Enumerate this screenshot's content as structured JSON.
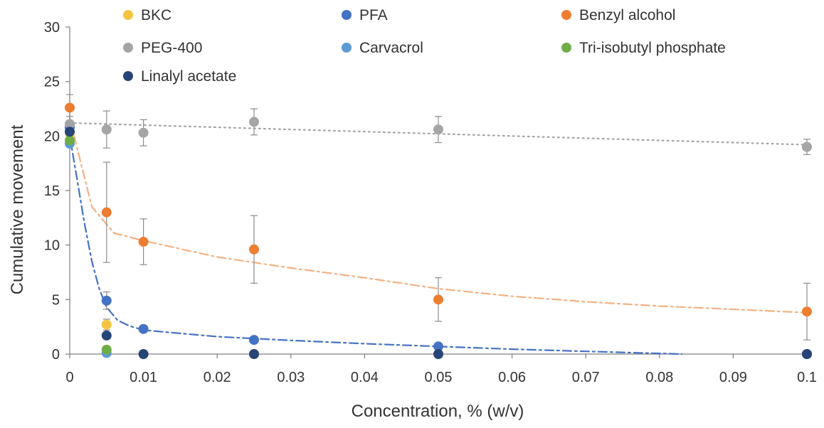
{
  "chart_data": {
    "type": "scatter",
    "title": "",
    "xlabel": "Concentration, % (w/v)",
    "ylabel": "Cumulative movement",
    "xlim": [
      0,
      0.1
    ],
    "ylim": [
      0,
      30
    ],
    "xticks": [
      "0",
      "0.01",
      "0.02",
      "0.03",
      "0.04",
      "0.05",
      "0.06",
      "0.07",
      "0.08",
      "0.09",
      "0.1"
    ],
    "yticks": [
      "0",
      "5",
      "10",
      "15",
      "20",
      "25",
      "30"
    ],
    "xtick_values": [
      0,
      0.01,
      0.02,
      0.03,
      0.04,
      0.05,
      0.06,
      0.07,
      0.08,
      0.09,
      0.1
    ],
    "ytick_values": [
      0,
      5,
      10,
      15,
      20,
      25,
      30
    ],
    "grid": false,
    "legend_position": "top",
    "series": [
      {
        "name": "BKC",
        "color": "#F4C542",
        "points": [
          {
            "x": 0,
            "y": 20.3,
            "err": 0.5
          },
          {
            "x": 0.005,
            "y": 2.7,
            "err": 0.5
          },
          {
            "x": 0.01,
            "y": 0
          },
          {
            "x": 0.025,
            "y": 0
          },
          {
            "x": 0.05,
            "y": 0
          },
          {
            "x": 0.1,
            "y": 0
          }
        ]
      },
      {
        "name": "PFA",
        "color": "#4472C4",
        "points": [
          {
            "x": 0,
            "y": 20.8,
            "err": 1.0
          },
          {
            "x": 0.005,
            "y": 4.9,
            "err": 0.8
          },
          {
            "x": 0.01,
            "y": 2.3,
            "err": 0.3
          },
          {
            "x": 0.025,
            "y": 1.3,
            "err": 0.3
          },
          {
            "x": 0.05,
            "y": 0.7,
            "err": 0.2
          },
          {
            "x": 0.1,
            "y": 0
          }
        ]
      },
      {
        "name": "Benzyl alcohol",
        "color": "#ED7D31",
        "points": [
          {
            "x": 0,
            "y": 22.6,
            "err": 1.2
          },
          {
            "x": 0.005,
            "y": 13.0,
            "err": 4.6
          },
          {
            "x": 0.01,
            "y": 10.3,
            "err": 2.1
          },
          {
            "x": 0.025,
            "y": 9.6,
            "err": 3.1
          },
          {
            "x": 0.05,
            "y": 5.0,
            "err": 2.0
          },
          {
            "x": 0.1,
            "y": 3.9,
            "err": 2.6
          }
        ]
      },
      {
        "name": "PEG-400",
        "color": "#A5A5A5",
        "points": [
          {
            "x": 0,
            "y": 21.1,
            "err": 1.4
          },
          {
            "x": 0.005,
            "y": 20.6,
            "err": 1.7
          },
          {
            "x": 0.01,
            "y": 20.3,
            "err": 1.2
          },
          {
            "x": 0.025,
            "y": 21.3,
            "err": 1.2
          },
          {
            "x": 0.05,
            "y": 20.6,
            "err": 1.2
          },
          {
            "x": 0.1,
            "y": 19.0,
            "err": 0.7
          }
        ]
      },
      {
        "name": "Carvacrol",
        "color": "#5B9BD5",
        "points": [
          {
            "x": 0,
            "y": 19.3
          },
          {
            "x": 0.005,
            "y": 0.1
          }
        ]
      },
      {
        "name": "Tri-isobutyl phosphate",
        "color": "#70AD47",
        "points": [
          {
            "x": 0,
            "y": 19.6
          },
          {
            "x": 0.005,
            "y": 0.4,
            "err": 0.3
          }
        ]
      },
      {
        "name": "Linalyl acetate",
        "color": "#264478",
        "points": [
          {
            "x": 0,
            "y": 20.4
          },
          {
            "x": 0.005,
            "y": 1.7
          },
          {
            "x": 0.01,
            "y": 0
          },
          {
            "x": 0.025,
            "y": 0
          },
          {
            "x": 0.05,
            "y": 0
          },
          {
            "x": 0.1,
            "y": 0
          }
        ]
      }
    ],
    "trendlines": [
      {
        "series": "PEG-400",
        "style": "dotted",
        "color": "#A5A5A5",
        "points": [
          [
            0,
            21.2
          ],
          [
            0.1,
            19.2
          ]
        ]
      },
      {
        "series": "Benzyl alcohol",
        "style": "dash-dot",
        "color": "#F4B183",
        "points": [
          [
            0,
            21.6
          ],
          [
            0.003,
            13.5
          ],
          [
            0.006,
            11.1
          ],
          [
            0.01,
            10.4
          ],
          [
            0.02,
            8.9
          ],
          [
            0.03,
            7.9
          ],
          [
            0.04,
            7.0
          ],
          [
            0.05,
            6.0
          ],
          [
            0.06,
            5.3
          ],
          [
            0.07,
            4.8
          ],
          [
            0.08,
            4.4
          ],
          [
            0.09,
            4.1
          ],
          [
            0.1,
            3.8
          ]
        ]
      },
      {
        "series": "PFA",
        "style": "dash-dot",
        "color": "#4472C4",
        "points": [
          [
            0,
            20.0
          ],
          [
            0.001,
            16.0
          ],
          [
            0.002,
            12.0
          ],
          [
            0.003,
            8.5
          ],
          [
            0.004,
            6.0
          ],
          [
            0.005,
            4.3
          ],
          [
            0.0065,
            3.1
          ],
          [
            0.008,
            2.6
          ],
          [
            0.01,
            2.2
          ],
          [
            0.02,
            1.6
          ],
          [
            0.03,
            1.25
          ],
          [
            0.04,
            0.95
          ],
          [
            0.05,
            0.7
          ],
          [
            0.06,
            0.45
          ],
          [
            0.07,
            0.25
          ],
          [
            0.08,
            0.06
          ],
          [
            0.083,
            0
          ]
        ]
      }
    ]
  }
}
